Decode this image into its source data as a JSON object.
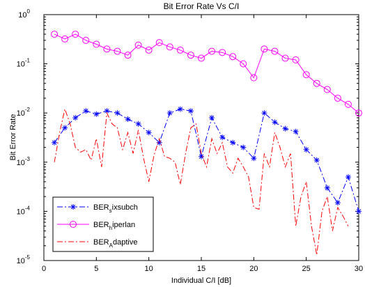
{
  "chart_data": {
    "type": "line",
    "title": "Bit Error Rate Vs C/I",
    "xlabel": "Individual C/I [dB]",
    "ylabel": "Bit Error Rate",
    "xlim": [
      0,
      30
    ],
    "ylim": [
      1e-05,
      1
    ],
    "yscale": "log",
    "grid": false,
    "legend_position": "bottom-left",
    "x_ticks": [
      0,
      5,
      10,
      15,
      20,
      25,
      30
    ],
    "x_tick_labels": [
      "0",
      "5",
      "10",
      "15",
      "20",
      "25",
      "30"
    ],
    "y_ticks": [
      1e-05,
      0.0001,
      0.001,
      0.01,
      0.1,
      1
    ],
    "y_tick_labels": [
      {
        "base": "10",
        "exp": "-5"
      },
      {
        "base": "10",
        "exp": "-4"
      },
      {
        "base": "10",
        "exp": "-3"
      },
      {
        "base": "10",
        "exp": "-2"
      },
      {
        "base": "10",
        "exp": "-1"
      },
      {
        "base": "10",
        "exp": "0"
      }
    ],
    "series": [
      {
        "legend_main": "BER",
        "legend_sub": "s",
        "legend_tail": "ixsubch",
        "color": "#0000ff",
        "line_style": "dashdot",
        "marker": "asterisk",
        "x": [
          1,
          2,
          3,
          4,
          5,
          6,
          7,
          8,
          9,
          10,
          11,
          12,
          13,
          14,
          15,
          16,
          17,
          18,
          19,
          20,
          21,
          22,
          23,
          24,
          25,
          26,
          27,
          28,
          29,
          30
        ],
        "y": [
          0.0025,
          0.005,
          0.008,
          0.011,
          0.0095,
          0.011,
          0.01,
          0.0075,
          0.006,
          0.004,
          0.0025,
          0.01,
          0.012,
          0.011,
          0.0013,
          0.008,
          0.0032,
          0.0025,
          0.002,
          0.0012,
          0.01,
          0.0065,
          0.0048,
          0.0042,
          0.0018,
          0.0011,
          0.0003,
          0.00015,
          0.0005,
          0.0001
        ]
      },
      {
        "legend_main": "BER",
        "legend_sub": "h",
        "legend_tail": "iperlan",
        "color": "#ff00ff",
        "line_style": "solid",
        "marker": "circle",
        "x": [
          1,
          2,
          3,
          4,
          5,
          6,
          7,
          8,
          9,
          10,
          11,
          12,
          13,
          14,
          15,
          16,
          17,
          18,
          19,
          20,
          21,
          22,
          23,
          24,
          25,
          26,
          27,
          28,
          29,
          30
        ],
        "y": [
          0.4,
          0.32,
          0.4,
          0.3,
          0.25,
          0.2,
          0.18,
          0.15,
          0.24,
          0.19,
          0.27,
          0.22,
          0.19,
          0.15,
          0.13,
          0.18,
          0.17,
          0.14,
          0.1,
          0.052,
          0.2,
          0.18,
          0.13,
          0.12,
          0.06,
          0.04,
          0.03,
          0.02,
          0.015,
          0.01
        ]
      },
      {
        "legend_main": "BER",
        "legend_sub": "A",
        "legend_tail": "daptive",
        "color": "#ff0000",
        "line_style": "dashdot",
        "marker": "none",
        "x": [
          1,
          1.5,
          2,
          2.5,
          3,
          3.5,
          4,
          4.5,
          5,
          5.5,
          6,
          6.5,
          7,
          7.5,
          8,
          8.5,
          9,
          9.5,
          10,
          10.5,
          11,
          11.5,
          12,
          12.5,
          13,
          13.5,
          14,
          14.5,
          15,
          15.5,
          16,
          16.5,
          17,
          17.5,
          18,
          18.5,
          19,
          19.5,
          20,
          20.5,
          21,
          21.5,
          22,
          22.5,
          23,
          23.5,
          24,
          24.5,
          25,
          25.5,
          26,
          26.5,
          27,
          27.5,
          28,
          28.5,
          29
        ],
        "y": [
          0.001,
          0.004,
          0.012,
          0.006,
          0.002,
          0.0016,
          0.0018,
          0.0011,
          0.003,
          0.0008,
          0.01,
          0.006,
          0.005,
          0.0018,
          0.004,
          0.0015,
          0.0045,
          0.0012,
          0.0004,
          0.0014,
          0.003,
          0.0013,
          0.0012,
          0.001,
          0.00035,
          0.0015,
          0.005,
          0.006,
          0.0015,
          0.0008,
          0.003,
          0.0015,
          0.0025,
          0.0008,
          0.0006,
          0.0012,
          0.0008,
          0.0005,
          0.00012,
          0.00011,
          0.0015,
          0.0008,
          0.004,
          0.002,
          0.0008,
          0.0015,
          5e-05,
          0.0002,
          0.0004,
          5e-05,
          1.3e-05,
          0.0001,
          0.0002,
          4e-05,
          0.00012,
          8e-05,
          5e-05
        ]
      }
    ]
  }
}
